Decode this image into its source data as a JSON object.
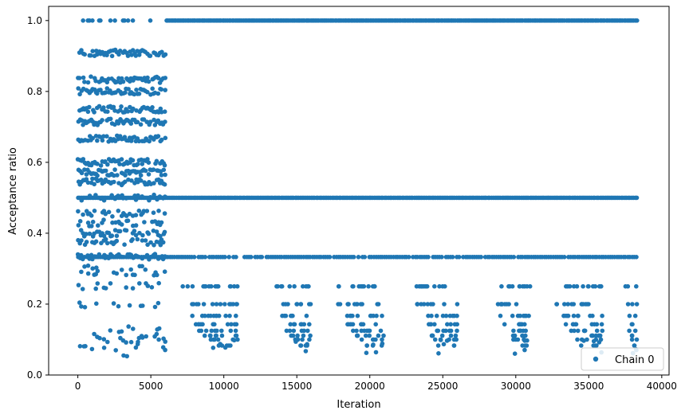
{
  "chart_data": {
    "type": "scatter",
    "title": "",
    "xlabel": "Iteration",
    "ylabel": "Acceptance ratio",
    "xlim": [
      -2000,
      40500
    ],
    "ylim": [
      0,
      1.04
    ],
    "xticks": [
      0,
      5000,
      10000,
      15000,
      20000,
      25000,
      30000,
      35000,
      40000
    ],
    "xtick_labels": [
      "0",
      "5000",
      "10000",
      "15000",
      "20000",
      "25000",
      "30000",
      "35000",
      "40000"
    ],
    "yticks": [
      0.0,
      0.2,
      0.4,
      0.6,
      0.8,
      1.0
    ],
    "ytick_labels": [
      "0.0",
      "0.2",
      "0.4",
      "0.6",
      "0.8",
      "1.0"
    ],
    "grid": false,
    "legend_position": "bottom-right",
    "series": [
      {
        "name": "Chain 0",
        "color": "#1f77b4",
        "marker": "circle",
        "x_range": [
          0,
          38300
        ],
        "dense_levels": [
          1.0,
          0.5,
          0.333
        ],
        "early_phase_x_range": [
          0,
          6000
        ],
        "early_phase_levels": [
          0.909,
          0.833,
          0.8,
          0.75,
          0.714,
          0.667,
          0.6,
          0.571,
          0.545,
          0.5,
          0.455,
          0.429,
          0.4,
          0.375,
          0.333,
          0.3,
          0.286,
          0.25,
          0.2,
          0.1
        ],
        "late_phase_levels": [
          0.25,
          0.2,
          0.167,
          0.143,
          0.125,
          0.111,
          0.1,
          0.083
        ],
        "sparse_clusters_x": [
          [
            7000,
            11000
          ],
          [
            13500,
            16000
          ],
          [
            17500,
            21000
          ],
          [
            23000,
            26000
          ],
          [
            28500,
            31000
          ],
          [
            32500,
            36000
          ],
          [
            37500,
            38300
          ]
        ]
      }
    ]
  }
}
